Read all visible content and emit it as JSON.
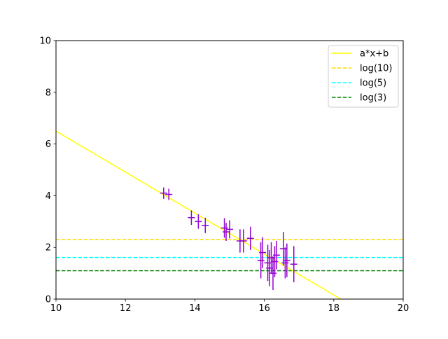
{
  "chart_data": {
    "type": "scatter",
    "title": "",
    "xlabel": "",
    "ylabel": "",
    "xlim": [
      10,
      20
    ],
    "ylim": [
      0,
      10
    ],
    "xticks": [
      "10",
      "12",
      "14",
      "16",
      "18",
      "20"
    ],
    "yticks": [
      "0",
      "2",
      "4",
      "6",
      "8",
      "10"
    ],
    "grid": false,
    "legend_position": "top-right",
    "legend": [
      "a*x+b",
      "log(10)",
      "log(5)",
      "log(3)"
    ],
    "fit_line": {
      "name": "a*x+b",
      "color": "#ffff00",
      "x": [
        10,
        18.2
      ],
      "y": [
        6.5,
        0
      ]
    },
    "hlines": [
      {
        "name": "log(10)",
        "y": 2.3026,
        "color": "#ffd700",
        "style": "dashed"
      },
      {
        "name": "log(5)",
        "y": 1.6094,
        "color": "#00ffff",
        "style": "dashed"
      },
      {
        "name": "log(3)",
        "y": 1.0986,
        "color": "#008000",
        "style": "dashed"
      }
    ],
    "points": {
      "color": "#9400d3",
      "values": [
        {
          "x": 13.1,
          "y": 4.1,
          "xerr": 0.1,
          "yerr": 0.22
        },
        {
          "x": 13.25,
          "y": 4.05,
          "xerr": 0.1,
          "yerr": 0.22
        },
        {
          "x": 13.9,
          "y": 3.15,
          "xerr": 0.1,
          "yerr": 0.28
        },
        {
          "x": 14.1,
          "y": 3.0,
          "xerr": 0.1,
          "yerr": 0.28
        },
        {
          "x": 14.3,
          "y": 2.85,
          "xerr": 0.1,
          "yerr": 0.3
        },
        {
          "x": 14.85,
          "y": 2.75,
          "xerr": 0.1,
          "yerr": 0.38
        },
        {
          "x": 14.9,
          "y": 2.6,
          "xerr": 0.1,
          "yerr": 0.35
        },
        {
          "x": 15.0,
          "y": 2.7,
          "xerr": 0.1,
          "yerr": 0.35
        },
        {
          "x": 15.3,
          "y": 2.25,
          "xerr": 0.1,
          "yerr": 0.45
        },
        {
          "x": 15.4,
          "y": 2.25,
          "xerr": 0.1,
          "yerr": 0.45
        },
        {
          "x": 15.6,
          "y": 2.35,
          "xerr": 0.1,
          "yerr": 0.45
        },
        {
          "x": 15.9,
          "y": 1.5,
          "xerr": 0.1,
          "yerr": 0.7
        },
        {
          "x": 15.95,
          "y": 1.8,
          "xerr": 0.1,
          "yerr": 0.6
        },
        {
          "x": 16.1,
          "y": 1.4,
          "xerr": 0.1,
          "yerr": 0.7
        },
        {
          "x": 16.15,
          "y": 1.2,
          "xerr": 0.1,
          "yerr": 0.7
        },
        {
          "x": 16.2,
          "y": 1.6,
          "xerr": 0.1,
          "yerr": 0.6
        },
        {
          "x": 16.25,
          "y": 1.0,
          "xerr": 0.1,
          "yerr": 0.65
        },
        {
          "x": 16.3,
          "y": 1.45,
          "xerr": 0.1,
          "yerr": 0.6
        },
        {
          "x": 16.35,
          "y": 1.7,
          "xerr": 0.1,
          "yerr": 0.55
        },
        {
          "x": 16.55,
          "y": 1.95,
          "xerr": 0.1,
          "yerr": 0.65
        },
        {
          "x": 16.6,
          "y": 1.4,
          "xerr": 0.1,
          "yerr": 0.6
        },
        {
          "x": 16.65,
          "y": 1.5,
          "xerr": 0.1,
          "yerr": 0.65
        },
        {
          "x": 16.85,
          "y": 1.35,
          "xerr": 0.1,
          "yerr": 0.7
        }
      ]
    }
  }
}
